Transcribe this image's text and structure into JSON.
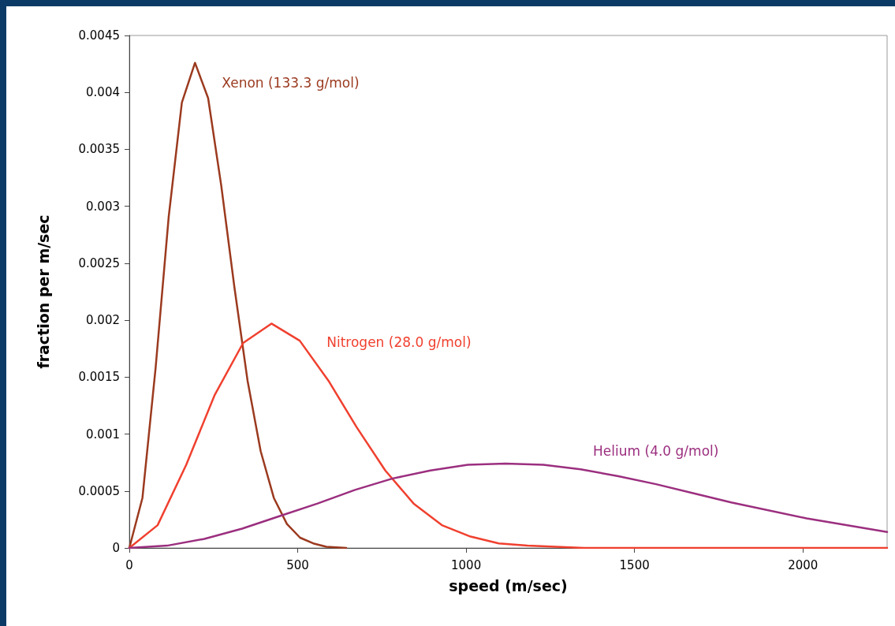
{
  "chart_data": {
    "type": "line",
    "xlabel": "speed (m/sec)",
    "ylabel": "fraction per m/sec",
    "xlim": [
      0,
      2250
    ],
    "xticks": [
      0,
      500,
      1000,
      1500,
      2000
    ],
    "ylim": [
      0,
      0.0045
    ],
    "yticks": [
      0,
      0.0005,
      0.001,
      0.0015,
      0.002,
      0.0025,
      0.003,
      0.0035,
      0.004,
      0.0045
    ],
    "grid": false,
    "legend": false,
    "marker": "none",
    "line_style": "solid",
    "series": [
      {
        "name": "Xenon (133.3 g/mol)",
        "color": "#9b3a1f",
        "x": [
          0,
          39,
          78,
          117,
          156,
          195,
          234,
          273,
          312,
          351,
          390,
          429,
          468,
          507,
          546,
          585,
          644
        ],
        "values": [
          0,
          0.00044,
          0.00158,
          0.00291,
          0.00391,
          0.00426,
          0.00395,
          0.00318,
          0.00229,
          0.00147,
          0.00085,
          0.00044,
          0.00021,
          9e-05,
          4e-05,
          1e-05,
          0
        ]
      },
      {
        "name": "Nitrogen (28.0 g/mol)",
        "color": "#f0402f",
        "x": [
          0,
          84,
          169,
          253,
          338,
          422,
          506,
          591,
          675,
          760,
          844,
          928,
          1013,
          1097,
          1182,
          1266,
          1350,
          2250
        ],
        "values": [
          0,
          0.0002,
          0.00073,
          0.00134,
          0.0018,
          0.00197,
          0.00182,
          0.00147,
          0.00106,
          0.00068,
          0.00039,
          0.0002,
          0.0001,
          4e-05,
          2e-05,
          1e-05,
          0,
          0
        ]
      },
      {
        "name": "Helium (4.0 g/mol)",
        "color": "#9b2f7f",
        "x": [
          0,
          112,
          223,
          335,
          447,
          559,
          670,
          782,
          894,
          1005,
          1117,
          1229,
          1340,
          1452,
          1564,
          1676,
          1787,
          2011,
          2250
        ],
        "values": [
          0,
          2e-05,
          8e-05,
          0.00017,
          0.00028,
          0.00039,
          0.00051,
          0.00061,
          0.00068,
          0.00073,
          0.00074,
          0.00073,
          0.00069,
          0.00063,
          0.00056,
          0.00048,
          0.0004,
          0.00026,
          0.00014
        ]
      }
    ]
  }
}
